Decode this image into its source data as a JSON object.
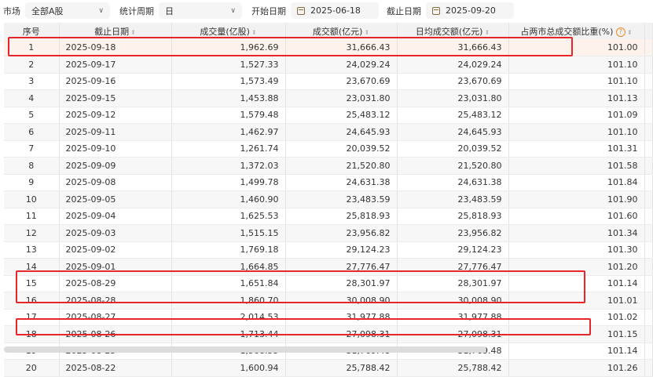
{
  "filters": {
    "market_label": "市场",
    "market_value": "全部A股",
    "period_label": "统计周期",
    "period_value": "日",
    "start_label": "开始日期",
    "start_value": "2025-06-18",
    "end_label": "截止日期",
    "end_value": "2025-09-20"
  },
  "columns": [
    "序号",
    "截止日期",
    "成交量(亿股)",
    "成交额(亿元)",
    "日均成交额(亿元)",
    "占两市总成交额比重(%)"
  ],
  "rows": [
    [
      "1",
      "2025-09-18",
      "1,962.69",
      "31,666.43",
      "31,666.43",
      "101.00"
    ],
    [
      "2",
      "2025-09-17",
      "1,527.33",
      "24,029.24",
      "24,029.24",
      "101.10"
    ],
    [
      "3",
      "2025-09-16",
      "1,573.49",
      "23,670.69",
      "23,670.69",
      "101.10"
    ],
    [
      "4",
      "2025-09-15",
      "1,453.88",
      "23,031.80",
      "23,031.80",
      "101.13"
    ],
    [
      "5",
      "2025-09-12",
      "1,579.48",
      "25,483.12",
      "25,483.12",
      "101.09"
    ],
    [
      "6",
      "2025-09-11",
      "1,462.97",
      "24,645.93",
      "24,645.93",
      "101.10"
    ],
    [
      "7",
      "2025-09-10",
      "1,261.74",
      "20,039.52",
      "20,039.52",
      "101.31"
    ],
    [
      "8",
      "2025-09-09",
      "1,372.03",
      "21,520.80",
      "21,520.80",
      "101.58"
    ],
    [
      "9",
      "2025-09-08",
      "1,499.78",
      "24,631.38",
      "24,631.38",
      "101.84"
    ],
    [
      "10",
      "2025-09-05",
      "1,460.90",
      "23,483.59",
      "23,483.59",
      "101.90"
    ],
    [
      "11",
      "2025-09-04",
      "1,625.53",
      "25,818.93",
      "25,818.93",
      "101.60"
    ],
    [
      "12",
      "2025-09-03",
      "1,515.15",
      "23,956.82",
      "23,956.82",
      "101.34"
    ],
    [
      "13",
      "2025-09-02",
      "1,769.18",
      "29,124.23",
      "29,124.23",
      "101.30"
    ],
    [
      "14",
      "2025-09-01",
      "1,664.85",
      "27,776.47",
      "27,776.47",
      "101.20"
    ],
    [
      "15",
      "2025-08-29",
      "1,651.84",
      "28,301.97",
      "28,301.97",
      "101.14"
    ],
    [
      "16",
      "2025-08-28",
      "1,860.70",
      "30,008.90",
      "30,008.90",
      "101.01"
    ],
    [
      "17",
      "2025-08-27",
      "2,014.53",
      "31,977.88",
      "31,977.88",
      "101.02"
    ],
    [
      "18",
      "2025-08-26",
      "1,713.44",
      "27,098.31",
      "27,098.31",
      "101.15"
    ],
    [
      "19",
      "2025-08-25",
      "1,968.55",
      "31,769.48",
      "31,769.48",
      "101.14"
    ],
    [
      "20",
      "2025-08-22",
      "1,600.94",
      "25,788.42",
      "25,788.42",
      "101.26"
    ]
  ],
  "colors": {
    "highlight_box": "#e8262a",
    "selected_row": "#fdf3ec",
    "help_icon": "#f08a24"
  }
}
